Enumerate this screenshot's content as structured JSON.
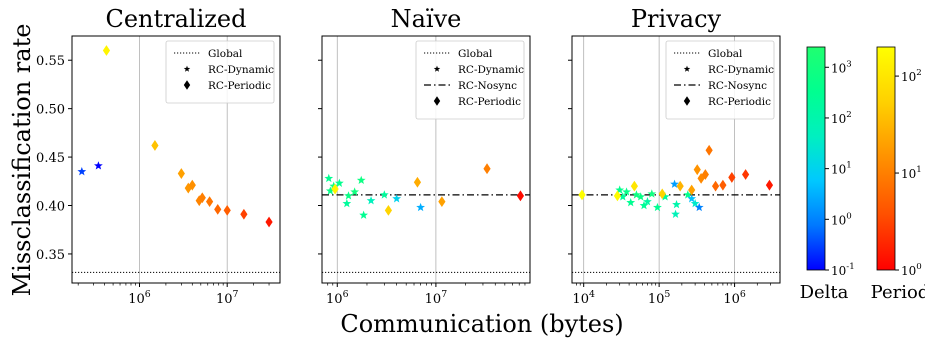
{
  "figure": {
    "ylabel": "Missclassification rate",
    "xlabel": "Communication (bytes)",
    "colorbars": [
      {
        "label": "Delta",
        "ticks": [
          "10^-1",
          "10^0",
          "10^1",
          "10^2",
          "10^3"
        ],
        "range_log10": [
          -1,
          3.4
        ],
        "colors": [
          "#0000ff",
          "#0080ff",
          "#00d0ff",
          "#00ffa0",
          "#00ff80"
        ]
      },
      {
        "label": "Period",
        "ticks": [
          "10^0",
          "10^1",
          "10^2"
        ],
        "range_log10": [
          0,
          2.3
        ],
        "colors": [
          "#ff0000",
          "#ff8000",
          "#ffff00"
        ]
      }
    ]
  },
  "chart_data": [
    {
      "type": "scatter",
      "title": "Centralized",
      "xscale": "log",
      "xlim": [
        170000,
        40000000
      ],
      "ylim": [
        0.32,
        0.575
      ],
      "xticks": [
        "10^6",
        "10^7"
      ],
      "yticks": [
        "0.35",
        "0.40",
        "0.45",
        "0.50",
        "0.55"
      ],
      "grid": "vertical",
      "legend": {
        "position": "top-right",
        "entries": [
          "Global",
          "RC-Dynamic",
          "RC-Periodic"
        ]
      },
      "global_line": 0.331,
      "series": [
        {
          "name": "RC-Dynamic",
          "marker": "star",
          "points": [
            [
              220000,
              0.435,
              0.3
            ],
            [
              340000,
              0.441,
              0.1
            ]
          ]
        },
        {
          "name": "RC-Periodic",
          "marker": "diamond",
          "points": [
            [
              420000,
              0.56,
              150
            ],
            [
              1500000,
              0.462,
              40
            ],
            [
              3000000,
              0.433,
              20
            ],
            [
              3600000,
              0.418,
              16
            ],
            [
              4000000,
              0.421,
              14
            ],
            [
              4800000,
              0.405,
              11
            ],
            [
              5200000,
              0.408,
              10
            ],
            [
              6300000,
              0.404,
              8
            ],
            [
              7800000,
              0.396,
              6
            ],
            [
              10000000,
              0.395,
              5
            ],
            [
              15500000,
              0.391,
              3
            ],
            [
              30000000,
              0.383,
              1.5
            ]
          ]
        }
      ]
    },
    {
      "type": "scatter",
      "title": "Naïve",
      "xscale": "log",
      "xlim": [
        700000,
        90000000
      ],
      "ylim": [
        0.32,
        0.575
      ],
      "xticks": [
        "10^6",
        "10^7"
      ],
      "grid": "vertical",
      "legend": {
        "position": "top-right",
        "entries": [
          "Global",
          "RC-Dynamic",
          "RC-Nosync",
          "RC-Periodic"
        ]
      },
      "global_line": 0.331,
      "nosync_line": 0.411,
      "series": [
        {
          "name": "RC-Dynamic",
          "marker": "star",
          "points": [
            [
              820000,
              0.428,
              300
            ],
            [
              850000,
              0.415,
              500
            ],
            [
              920000,
              0.42,
              800
            ],
            [
              1050000,
              0.423,
              400
            ],
            [
              1250000,
              0.402,
              200
            ],
            [
              1300000,
              0.41,
              600
            ],
            [
              1500000,
              0.414,
              1000
            ],
            [
              1750000,
              0.426,
              700
            ],
            [
              1850000,
              0.39,
              300
            ],
            [
              2200000,
              0.405,
              50
            ],
            [
              3000000,
              0.411,
              200
            ],
            [
              4000000,
              0.407,
              10
            ],
            [
              7000000,
              0.398,
              3
            ]
          ]
        },
        {
          "name": "RC-Periodic",
          "marker": "diamond",
          "points": [
            [
              950000,
              0.417,
              150
            ],
            [
              3300000,
              0.395,
              60
            ],
            [
              6500000,
              0.424,
              25
            ],
            [
              11500000,
              0.404,
              20
            ],
            [
              33000000,
              0.438,
              10
            ],
            [
              72000000,
              0.41,
              1.2
            ]
          ]
        }
      ]
    },
    {
      "type": "scatter",
      "title": "Privacy",
      "xscale": "log",
      "xlim": [
        7000,
        4000000
      ],
      "ylim": [
        0.32,
        0.575
      ],
      "xticks": [
        "10^4",
        "10^5",
        "10^6"
      ],
      "grid": "vertical",
      "legend": {
        "position": "top-right",
        "entries": [
          "Global",
          "RC-Dynamic",
          "RC-Nosync",
          "RC-Periodic"
        ]
      },
      "global_line": 0.331,
      "nosync_line": 0.411,
      "series": [
        {
          "name": "RC-Dynamic",
          "marker": "star",
          "points": [
            [
              30000,
              0.416,
              400
            ],
            [
              33000,
              0.409,
              200
            ],
            [
              37000,
              0.414,
              500
            ],
            [
              42000,
              0.403,
              300
            ],
            [
              50000,
              0.411,
              800
            ],
            [
              57000,
              0.409,
              600
            ],
            [
              63000,
              0.4,
              250
            ],
            [
              70000,
              0.404,
              150
            ],
            [
              80000,
              0.412,
              900
            ],
            [
              95000,
              0.398,
              300
            ],
            [
              120000,
              0.409,
              200
            ],
            [
              160000,
              0.422,
              2
            ],
            [
              165000,
              0.391,
              60
            ],
            [
              170000,
              0.401,
              100
            ],
            [
              240000,
              0.411,
              400
            ],
            [
              270000,
              0.407,
              5
            ],
            [
              300000,
              0.402,
              30
            ],
            [
              340000,
              0.398,
              1
            ]
          ]
        },
        {
          "name": "RC-Periodic",
          "marker": "diamond",
          "points": [
            [
              9500,
              0.411,
              200
            ],
            [
              28000,
              0.41,
              180
            ],
            [
              47000,
              0.42,
              100
            ],
            [
              110000,
              0.412,
              60
            ],
            [
              190000,
              0.42,
              30
            ],
            [
              270000,
              0.416,
              20
            ],
            [
              320000,
              0.437,
              15
            ],
            [
              360000,
              0.428,
              12
            ],
            [
              410000,
              0.432,
              10
            ],
            [
              460000,
              0.457,
              8
            ],
            [
              560000,
              0.42,
              6
            ],
            [
              700000,
              0.421,
              5
            ],
            [
              920000,
              0.429,
              3
            ],
            [
              1400000,
              0.432,
              2.5
            ],
            [
              2900000,
              0.421,
              1.5
            ]
          ]
        }
      ]
    }
  ]
}
